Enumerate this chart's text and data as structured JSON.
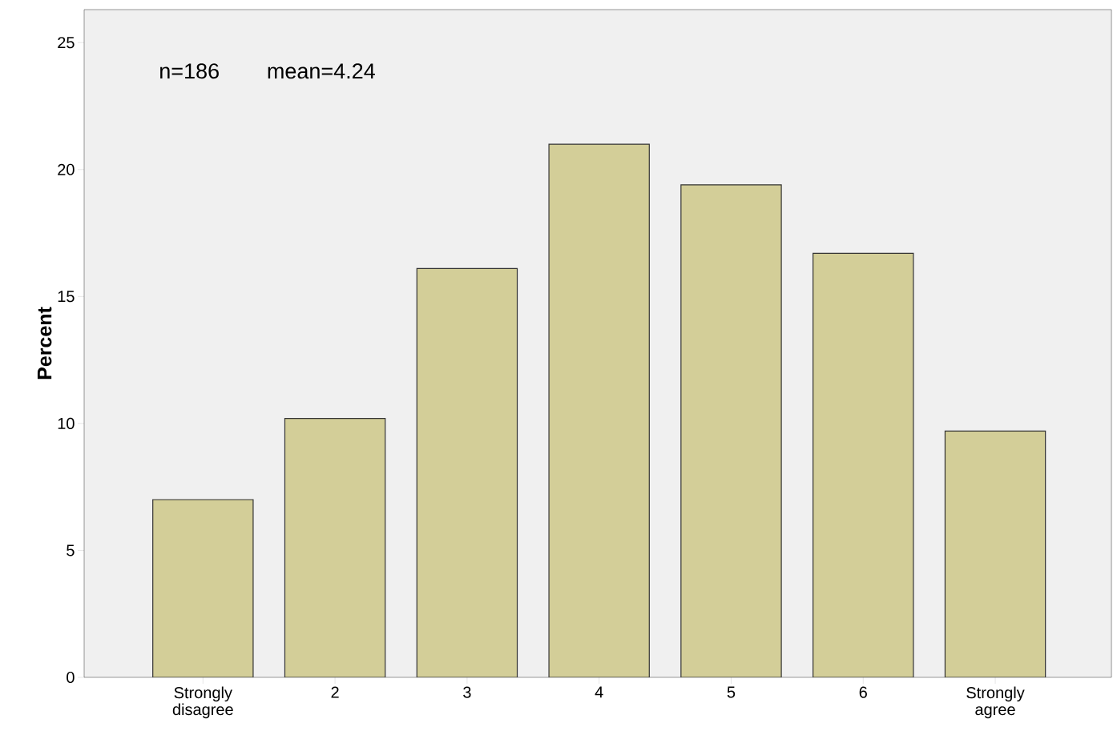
{
  "chart_data": {
    "type": "bar",
    "ylabel": "Percent",
    "categories": [
      "Strongly disagree",
      "2",
      "3",
      "4",
      "5",
      "6",
      "Strongly agree"
    ],
    "values": [
      7.0,
      10.2,
      16.1,
      21.0,
      19.4,
      16.7,
      9.7
    ],
    "color": "#d3ce98",
    "ylim": [
      0,
      26.3
    ],
    "yticks": [
      0,
      5,
      10,
      15,
      20,
      25
    ],
    "grid": false,
    "annotations": [
      "n=186",
      "mean=4.24"
    ]
  }
}
